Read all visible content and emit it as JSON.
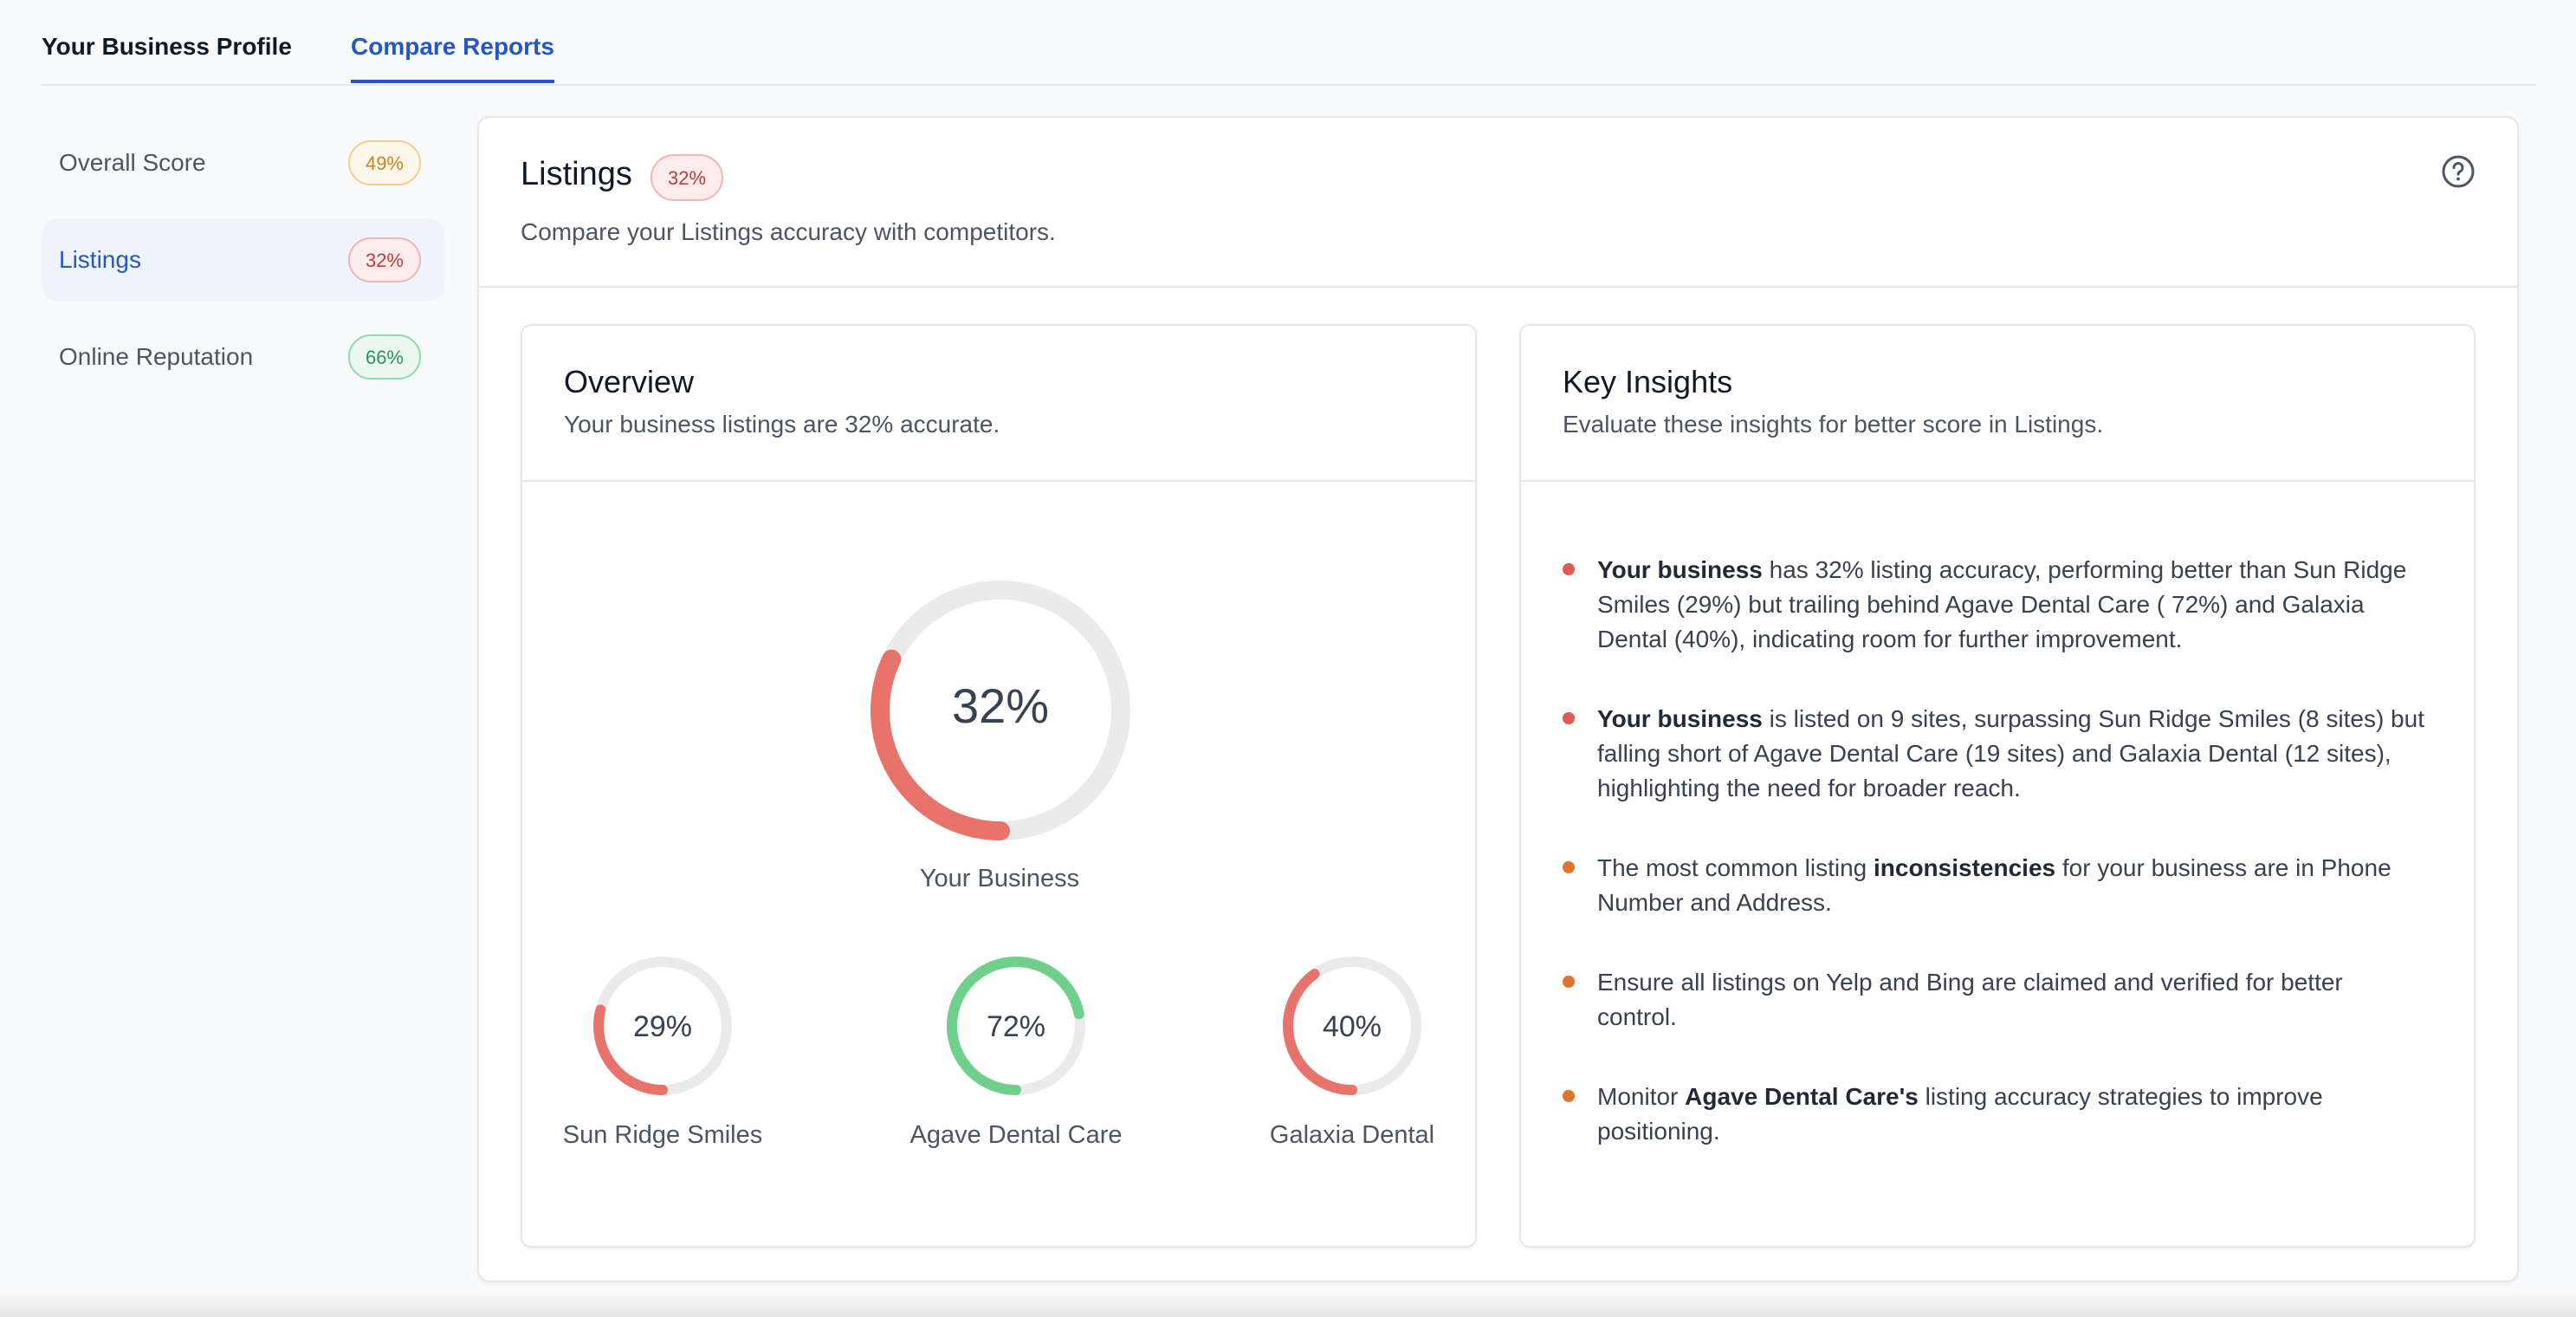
{
  "tabs": [
    {
      "label": "Your Business Profile"
    },
    {
      "label": "Compare Reports"
    }
  ],
  "sidebar": {
    "items": [
      {
        "label": "Overall Score",
        "badge": "49%"
      },
      {
        "label": "Listings",
        "badge": "32%"
      },
      {
        "label": "Online Reputation",
        "badge": "66%"
      }
    ]
  },
  "main": {
    "title": "Listings",
    "badge": "32%",
    "subtitle": "Compare your Listings accuracy with competitors."
  },
  "overview": {
    "title": "Overview",
    "subtitle": "Your business listings are 32% accurate.",
    "primary": {
      "name": "Your Business",
      "value": 32,
      "value_label": "32%",
      "color": "#e8736a"
    },
    "competitors": [
      {
        "name": "Sun Ridge Smiles",
        "value": 29,
        "value_label": "29%",
        "color": "#e8736a"
      },
      {
        "name": "Agave Dental Care",
        "value": 72,
        "value_label": "72%",
        "color": "#6fd08c"
      },
      {
        "name": "Galaxia Dental",
        "value": 40,
        "value_label": "40%",
        "color": "#e8736a"
      }
    ],
    "track_color": "#ebebeb"
  },
  "insights": {
    "title": "Key Insights",
    "subtitle": "Evaluate these insights for better score in Listings.",
    "items": [
      {
        "bold": "Your business",
        "text": " has 32% listing accuracy, performing better than Sun Ridge Smiles (29%) but trailing behind Agave Dental Care ( 72%) and Galaxia Dental (40%), indicating room for further improvement."
      },
      {
        "bold": "Your business",
        "text": " is listed on 9 sites, surpassing Sun Ridge Smiles (8 sites) but falling short of Agave Dental Care (19 sites) and Galaxia Dental (12 sites), highlighting the need for broader reach."
      },
      {
        "pre": "The most common listing ",
        "bold": "inconsistencies",
        "text": " for your business are in Phone Number and Address."
      },
      {
        "text": "Ensure all listings on Yelp and Bing are claimed and verified for better control."
      },
      {
        "pre": "Monitor ",
        "bold": "Agave Dental Care's",
        "text": " listing accuracy strategies to improve positioning."
      }
    ]
  }
}
